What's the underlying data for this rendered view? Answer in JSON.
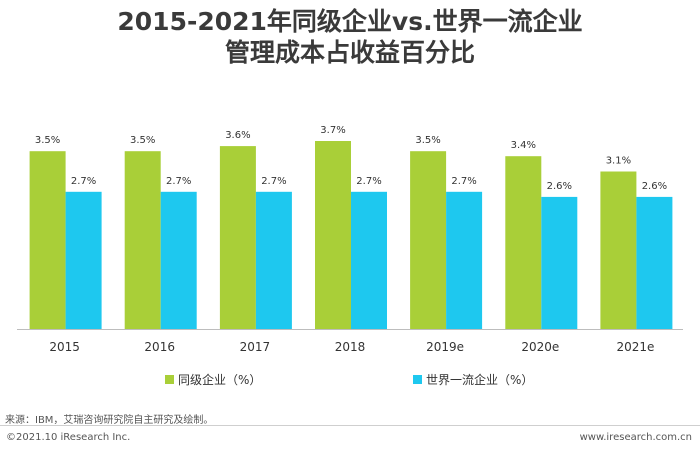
{
  "title_line1": "2015-2021年同级企业vs.世界一流企业",
  "title_line2": "管理成本占收益百分比",
  "colors": {
    "peer": "#a9cf38",
    "world": "#1ec8ef",
    "axis": "#bdbdbd"
  },
  "chart_data": {
    "type": "bar",
    "categories": [
      "2015",
      "2016",
      "2017",
      "2018",
      "2019e",
      "2020e",
      "2021e"
    ],
    "series": [
      {
        "name": "同级企业（%）",
        "values": [
          3.5,
          3.5,
          3.6,
          3.7,
          3.5,
          3.4,
          3.1
        ],
        "labels": [
          "3.5%",
          "3.5%",
          "3.6%",
          "3.7%",
          "3.5%",
          "3.4%",
          "3.1%"
        ]
      },
      {
        "name": "世界一流企业（%）",
        "values": [
          2.7,
          2.7,
          2.7,
          2.7,
          2.7,
          2.6,
          2.6
        ],
        "labels": [
          "2.7%",
          "2.7%",
          "2.7%",
          "2.7%",
          "2.7%",
          "2.6%",
          "2.6%"
        ]
      }
    ],
    "ylim": [
      0,
      3.7
    ],
    "grid": false,
    "legend_position": "bottom"
  },
  "source_text": "来源：IBM，艾瑞咨询研究院自主研究及绘制。",
  "footer_left": "©2021.10 iResearch Inc.",
  "footer_right": "www.iresearch.com.cn"
}
